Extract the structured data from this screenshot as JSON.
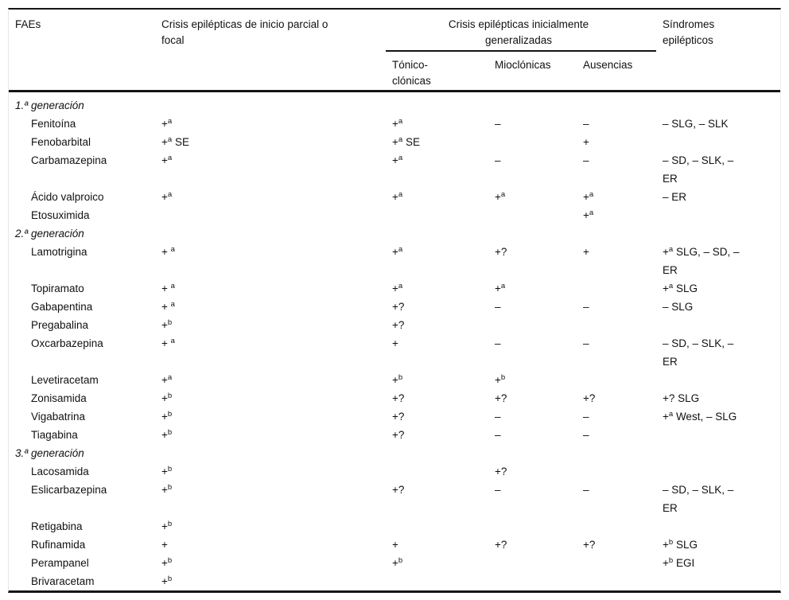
{
  "table": {
    "title_semantic": "Eficacia de los FAE según tipo de crisis y síndrome epiléptico",
    "header": {
      "faes": "FAEs",
      "focal": "Crisis epilépticas de inicio parcial o\nfocal",
      "generalized_group": "Crisis epilépticas inicialmente\ngeneralizadas",
      "tonic_clonic": "Tónico-\nclónicas",
      "myoclonic": "Mioclónicas",
      "absence": "Ausencias",
      "syndromes": "Síndromes\nepilépticos"
    },
    "rows": [
      {
        "type": "section",
        "name": "1.ª generación"
      },
      {
        "type": "drug",
        "name": "Fenitoína",
        "focal": "+^a",
        "tonic": "+^a",
        "myoclonic": "–",
        "absence": "–",
        "syndromes": "– SLG, – SLK"
      },
      {
        "type": "drug",
        "name": "Fenobarbital",
        "focal": "+^a SE",
        "tonic": "+^a SE",
        "myoclonic": "",
        "absence": "+",
        "syndromes": ""
      },
      {
        "type": "drug",
        "name": "Carbamazepina",
        "focal": "+^a",
        "tonic": "+^a",
        "myoclonic": "–",
        "absence": "–",
        "syndromes": "– SD, – SLK, –\nER"
      },
      {
        "type": "drug",
        "name": "Ácido valproico",
        "focal": "+^a",
        "tonic": "+^a",
        "myoclonic": "+^a",
        "absence": "+^a",
        "syndromes": "– ER"
      },
      {
        "type": "drug",
        "name": "Etosuximida",
        "focal": "",
        "tonic": "",
        "myoclonic": "",
        "absence": "+^a",
        "syndromes": ""
      },
      {
        "type": "section",
        "name": "2.ª generación"
      },
      {
        "type": "drug",
        "name": "Lamotrigina",
        "focal": "+ ^a",
        "tonic": "+^a",
        "myoclonic": "+?",
        "absence": "+",
        "syndromes": "+^a SLG, – SD, –\nER"
      },
      {
        "type": "drug",
        "name": "Topiramato",
        "focal": "+ ^a",
        "tonic": "+^a",
        "myoclonic": "+^a",
        "absence": "",
        "syndromes": "+^a SLG"
      },
      {
        "type": "drug",
        "name": "Gabapentina",
        "focal": "+ ^a",
        "tonic": "+?",
        "myoclonic": "–",
        "absence": "–",
        "syndromes": "– SLG"
      },
      {
        "type": "drug",
        "name": "Pregabalina",
        "focal": "+^b",
        "tonic": "+?",
        "myoclonic": "",
        "absence": "",
        "syndromes": ""
      },
      {
        "type": "drug",
        "name": "Oxcarbazepina",
        "focal": "+ ^a",
        "tonic": "+",
        "myoclonic": "–",
        "absence": "–",
        "syndromes": "– SD, – SLK, –\nER"
      },
      {
        "type": "drug",
        "name": "Levetiracetam",
        "focal": "+^a",
        "tonic": "+^b",
        "myoclonic": "+^b",
        "absence": "",
        "syndromes": ""
      },
      {
        "type": "drug",
        "name": "Zonisamida",
        "focal": "+^b",
        "tonic": "+?",
        "myoclonic": "+?",
        "absence": "+?",
        "syndromes": "+? SLG"
      },
      {
        "type": "drug",
        "name": "Vigabatrina",
        "focal": "+^b",
        "tonic": "+?",
        "myoclonic": "–",
        "absence": "–",
        "syndromes": "+^a West, – SLG"
      },
      {
        "type": "drug",
        "name": "Tiagabina",
        "focal": "+^b",
        "tonic": "+?",
        "myoclonic": "–",
        "absence": "–",
        "syndromes": ""
      },
      {
        "type": "section",
        "name": "3.ª generación"
      },
      {
        "type": "drug",
        "name": "Lacosamida",
        "focal": "+^b",
        "tonic": "",
        "myoclonic": "+?",
        "absence": "",
        "syndromes": ""
      },
      {
        "type": "drug",
        "name": "Eslicarbazepina",
        "focal": "+^b",
        "tonic": "+?",
        "myoclonic": "–",
        "absence": "–",
        "syndromes": "– SD, – SLK, –\nER"
      },
      {
        "type": "drug",
        "name": "Retigabina",
        "focal": "+^b",
        "tonic": "",
        "myoclonic": "",
        "absence": "",
        "syndromes": ""
      },
      {
        "type": "drug",
        "name": "Rufinamida",
        "focal": "+",
        "tonic": "+",
        "myoclonic": "+?",
        "absence": "+?",
        "syndromes": "+^b SLG"
      },
      {
        "type": "drug",
        "name": "Perampanel",
        "focal": "+^b",
        "tonic": "+^b",
        "myoclonic": "",
        "absence": "",
        "syndromes": "+^b EGI"
      },
      {
        "type": "drug",
        "name": "Brivaracetam",
        "focal": "+^b",
        "tonic": "",
        "myoclonic": "",
        "absence": "",
        "syndromes": ""
      }
    ]
  }
}
